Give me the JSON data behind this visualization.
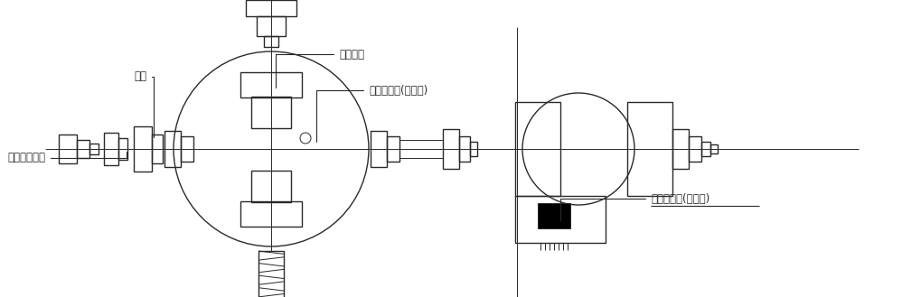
{
  "bg_color": "#ffffff",
  "line_color": "#2a2a2a",
  "lw_thin": 0.7,
  "lw_med": 1.0,
  "lw_thick": 1.4,
  "font_size": 8.5,
  "labels": {
    "base_bolt": "基准紧固螺栓",
    "pad": "垫块",
    "tighten_pin": "紧固销栓",
    "vertical_scale": "垂直刻度盘(经度盘)",
    "horizontal_scale": "水平刻度盘(经度盘)"
  }
}
